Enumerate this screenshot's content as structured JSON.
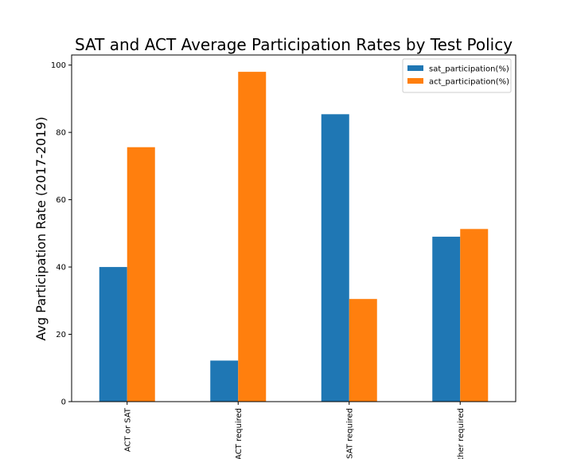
{
  "chart_data": {
    "type": "bar",
    "title": "SAT and ACT Average Participation Rates by Test Policy",
    "xlabel": "",
    "ylabel": "Avg Participation Rate (2017-2019)",
    "categories": [
      "ACT or SAT",
      "ACT required",
      "SAT required",
      "Neither required"
    ],
    "series": [
      {
        "name": "sat_participation(%)",
        "values": [
          40,
          12.2,
          85.4,
          49
        ],
        "color": "#1f77b4"
      },
      {
        "name": "act_participation(%)",
        "values": [
          75.6,
          98,
          30.5,
          51.3
        ],
        "color": "#ff7f0e"
      }
    ],
    "ylim": [
      0,
      103
    ],
    "yticks": [
      0,
      20,
      40,
      60,
      80,
      100
    ],
    "grid": false,
    "legend_position": "top-right"
  }
}
